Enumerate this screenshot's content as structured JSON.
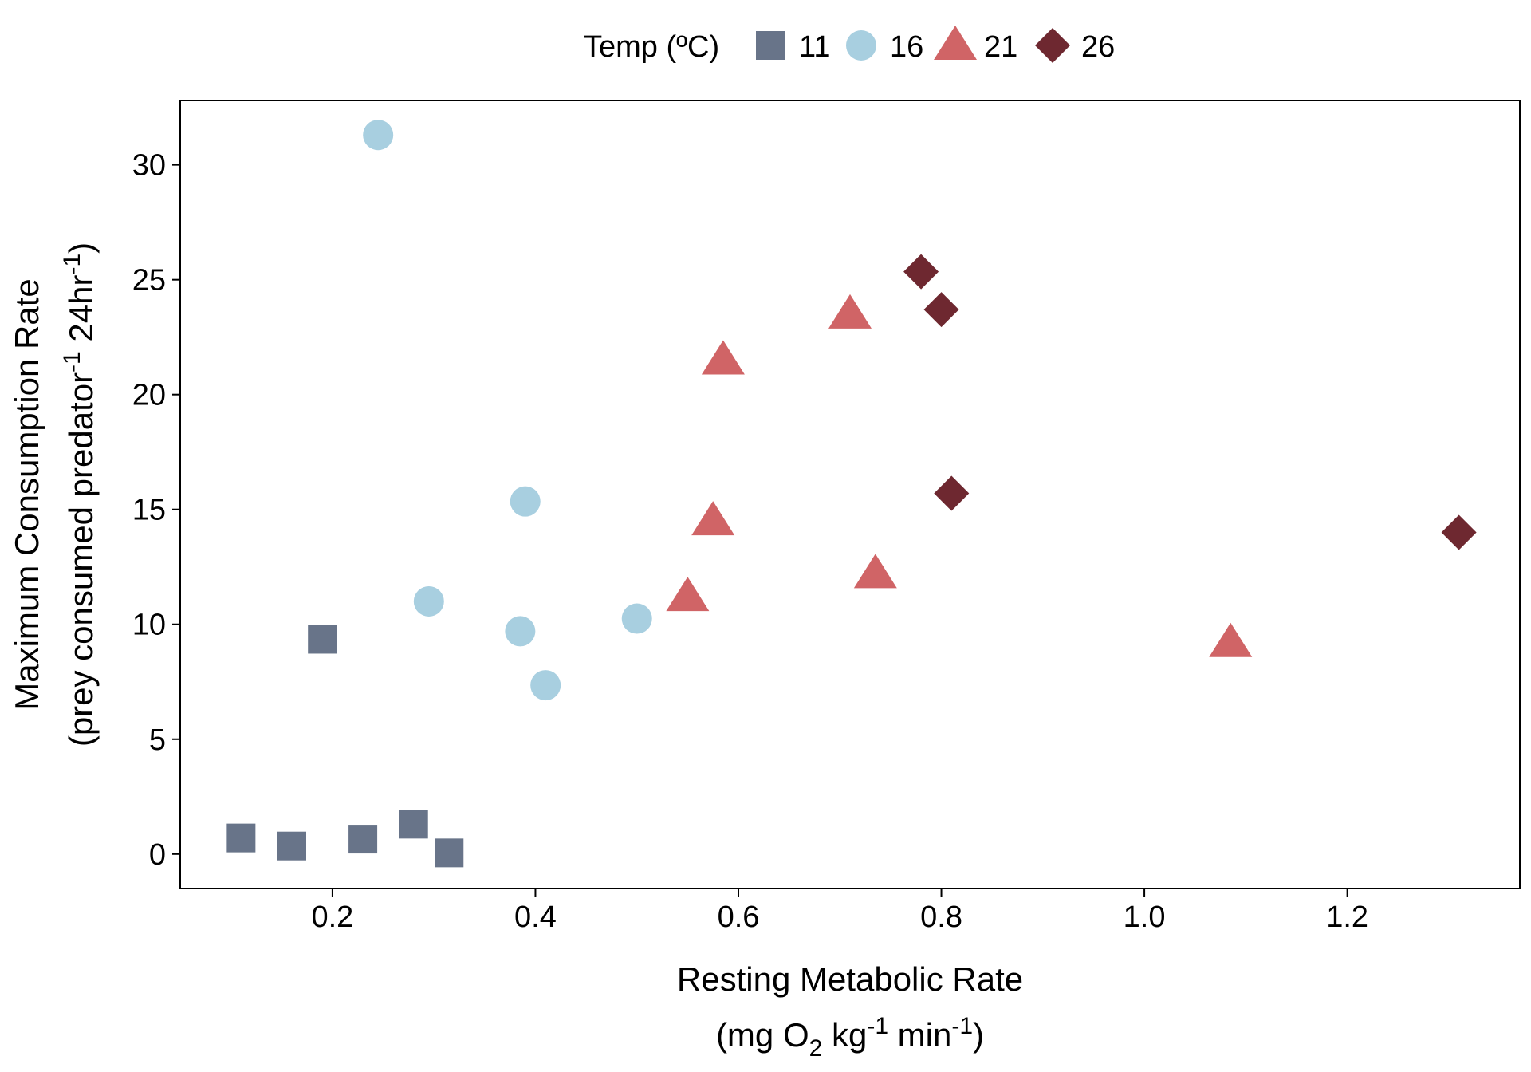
{
  "chart_data": {
    "type": "scatter",
    "legend": {
      "title": "Temp (ºC)",
      "placement": "top-center"
    },
    "xlabel": {
      "line1": "Resting Metabolic Rate",
      "line2_pre": "(mg O",
      "line2_sub": "2",
      "line2_mid": " kg",
      "line2_sup1": "-1",
      "line2_mid2": " min",
      "line2_sup2": "-1",
      "line2_post": ")"
    },
    "ylabel": {
      "line1": "Maximum Consumption Rate",
      "line2_pre": "(prey consumed predator",
      "line2_sup1": "-1",
      "line2_mid": " 24hr",
      "line2_sup2": "-1",
      "line2_post": ")"
    },
    "xlim": [
      0.05,
      1.37
    ],
    "ylim": [
      -1.5,
      32.8
    ],
    "xticks": [
      0.2,
      0.4,
      0.6,
      0.8,
      1.0,
      1.2
    ],
    "xtick_labels": [
      "0.2",
      "0.4",
      "0.6",
      "0.8",
      "1.0",
      "1.2"
    ],
    "yticks": [
      0,
      5,
      10,
      15,
      20,
      25,
      30
    ],
    "ytick_labels": [
      "0",
      "5",
      "10",
      "15",
      "20",
      "25",
      "30"
    ],
    "grid": false,
    "series": [
      {
        "name": "11",
        "marker": "square",
        "color": "#687489",
        "points": [
          [
            0.11,
            0.7
          ],
          [
            0.16,
            0.35
          ],
          [
            0.19,
            9.35
          ],
          [
            0.23,
            0.65
          ],
          [
            0.28,
            1.3
          ],
          [
            0.315,
            0.05
          ]
        ]
      },
      {
        "name": "16",
        "marker": "circle",
        "color": "#a8cfe0",
        "points": [
          [
            0.245,
            31.3
          ],
          [
            0.295,
            11.0
          ],
          [
            0.385,
            9.7
          ],
          [
            0.39,
            15.35
          ],
          [
            0.41,
            7.35
          ],
          [
            0.5,
            10.25
          ]
        ]
      },
      {
        "name": "21",
        "marker": "triangle",
        "color": "#d06466",
        "points": [
          [
            0.55,
            11.2
          ],
          [
            0.575,
            14.5
          ],
          [
            0.585,
            21.5
          ],
          [
            0.71,
            23.5
          ],
          [
            0.735,
            12.2
          ],
          [
            1.085,
            9.2
          ]
        ]
      },
      {
        "name": "26",
        "marker": "diamond",
        "color": "#6e2830",
        "points": [
          [
            0.78,
            25.35
          ],
          [
            0.8,
            23.7
          ],
          [
            0.81,
            15.7
          ],
          [
            1.31,
            14.0
          ]
        ]
      }
    ]
  }
}
